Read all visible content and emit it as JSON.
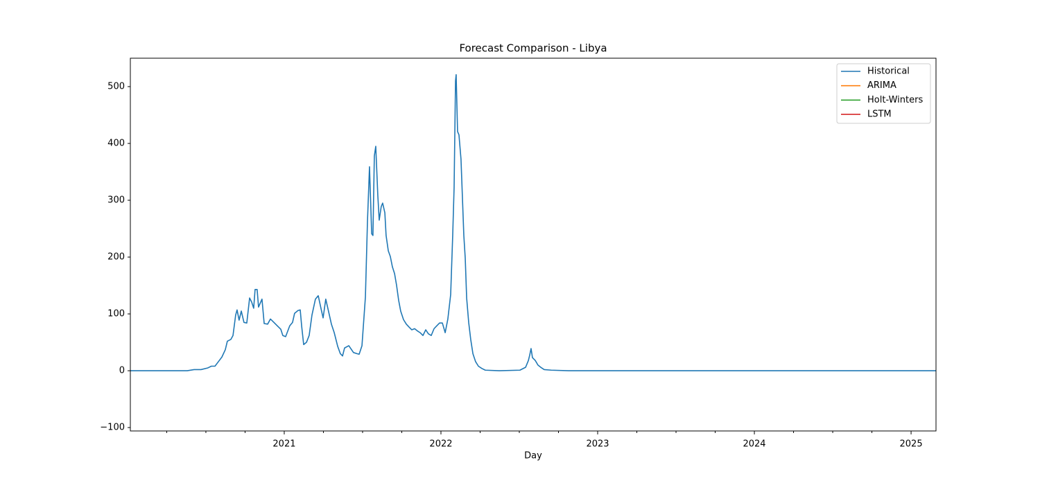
{
  "chart_data": {
    "type": "line",
    "title": "Forecast Comparison - Libya",
    "xlabel": "Day",
    "xlim": [
      2020.018,
      2025.159
    ],
    "xticks": [
      2021,
      2022,
      2023,
      2024,
      2025
    ],
    "xminorticks": [
      2020.25,
      2020.5,
      2020.75,
      2021.25,
      2021.5,
      2021.75,
      2022.25,
      2022.5,
      2022.75,
      2023.25,
      2023.5,
      2023.75,
      2024.25,
      2024.5,
      2024.75
    ],
    "ylim": [
      -106,
      550
    ],
    "yticks": [
      {
        "value": -100,
        "label": "−100"
      },
      0,
      100,
      200,
      300,
      400,
      500
    ],
    "grid": false,
    "legend": "upper right",
    "series": [
      {
        "name": "Historical",
        "color": "#1f77b4",
        "x": [
          2020.018,
          2020.381,
          2020.425,
          2020.469,
          2020.513,
          2020.535,
          2020.558,
          2020.58,
          2020.602,
          2020.624,
          2020.637,
          2020.659,
          2020.673,
          2020.69,
          2020.699,
          2020.712,
          2020.726,
          2020.743,
          2020.761,
          2020.779,
          2020.792,
          2020.805,
          2020.814,
          2020.827,
          2020.836,
          2020.858,
          2020.872,
          2020.894,
          2020.912,
          2020.934,
          2020.956,
          2020.978,
          2020.991,
          2021.009,
          2021.035,
          2021.053,
          2021.066,
          2021.088,
          2021.102,
          2021.111,
          2021.124,
          2021.142,
          2021.159,
          2021.177,
          2021.199,
          2021.217,
          2021.235,
          2021.248,
          2021.265,
          2021.279,
          2021.301,
          2021.319,
          2021.341,
          2021.358,
          2021.372,
          2021.385,
          2021.412,
          2021.442,
          2021.465,
          2021.478,
          2021.496,
          2021.518,
          2021.531,
          2021.544,
          2021.558,
          2021.566,
          2021.575,
          2021.584,
          2021.597,
          2021.606,
          2021.619,
          2021.628,
          2021.642,
          2021.65,
          2021.664,
          2021.677,
          2021.69,
          2021.704,
          2021.717,
          2021.73,
          2021.743,
          2021.761,
          2021.779,
          2021.796,
          2021.814,
          2021.832,
          2021.85,
          2021.867,
          2021.885,
          2021.903,
          2021.92,
          2021.938,
          2021.956,
          2021.973,
          2021.991,
          2022.009,
          2022.027,
          2022.044,
          2022.062,
          2022.075,
          2022.084,
          2022.093,
          2022.097,
          2022.106,
          2022.115,
          2022.128,
          2022.137,
          2022.146,
          2022.155,
          2022.164,
          2022.177,
          2022.19,
          2022.204,
          2022.221,
          2022.239,
          2022.261,
          2022.283,
          2022.372,
          2022.504,
          2022.54,
          2022.558,
          2022.566,
          2022.575,
          2022.584,
          2022.602,
          2022.619,
          2022.637,
          2022.659,
          2022.704,
          2022.814,
          2025.159
        ],
        "values": [
          0,
          0,
          2,
          2,
          5,
          8,
          8,
          16,
          24,
          37,
          52,
          55,
          62,
          98,
          107,
          89,
          105,
          85,
          84,
          128,
          121,
          110,
          143,
          143,
          112,
          126,
          83,
          82,
          91,
          85,
          79,
          73,
          62,
          60,
          79,
          85,
          101,
          106,
          107,
          79,
          46,
          50,
          62,
          98,
          126,
          132,
          109,
          93,
          126,
          109,
          82,
          67,
          43,
          30,
          26,
          40,
          44,
          32,
          30,
          29,
          44,
          130,
          262,
          359,
          241,
          238,
          378,
          395,
          309,
          265,
          289,
          295,
          278,
          238,
          211,
          201,
          183,
          171,
          150,
          124,
          105,
          90,
          82,
          77,
          72,
          74,
          70,
          67,
          62,
          72,
          65,
          62,
          74,
          79,
          84,
          84,
          67,
          91,
          134,
          238,
          323,
          510,
          521,
          421,
          415,
          372,
          305,
          238,
          198,
          128,
          85,
          55,
          30,
          16,
          8,
          4,
          1,
          0,
          1,
          6,
          18,
          27,
          39,
          23,
          18,
          10,
          6,
          2,
          1,
          0,
          0
        ]
      },
      {
        "name": "ARIMA",
        "color": "#ff7f0e",
        "x": [],
        "values": []
      },
      {
        "name": "Holt-Winters",
        "color": "#2ca02c",
        "x": [],
        "values": []
      },
      {
        "name": "LSTM",
        "color": "#d62728",
        "x": [],
        "values": []
      }
    ]
  }
}
